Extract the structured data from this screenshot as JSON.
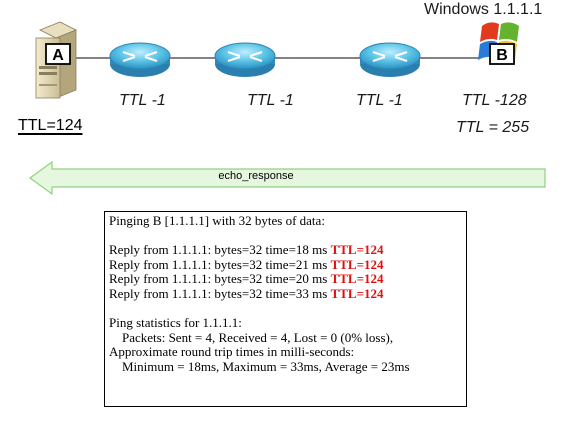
{
  "diagram": {
    "host_a": {
      "letter": "A",
      "ttl_label": "TTL=124"
    },
    "host_b": {
      "letter": "B",
      "title": "Windows 1.1.1.1",
      "hop_label": "TTL -128",
      "initial_ttl_label": "TTL = 255"
    },
    "routers": [
      {
        "hop_label": "TTL -1"
      },
      {
        "hop_label": "TTL -1"
      },
      {
        "hop_label": "TTL -1"
      }
    ],
    "arrow": {
      "label": "echo_response",
      "direction": "left"
    },
    "colors": {
      "router": "#59c2e6",
      "arrow_fill": "#e6f7df",
      "highlight": "#e01010"
    }
  },
  "console": {
    "header": "Pinging B [1.1.1.1] with 32 bytes of data:",
    "replies": [
      {
        "text": "Reply from 1.1.1.1: bytes=32 time=18 ms ",
        "ttl": "TTL=124"
      },
      {
        "text": "Reply from 1.1.1.1: bytes=32 time=21 ms ",
        "ttl": "TTL=124"
      },
      {
        "text": "Reply from 1.1.1.1: bytes=32 time=20 ms ",
        "ttl": "TTL=124"
      },
      {
        "text": "Reply from 1.1.1.1: bytes=32 time=33 ms ",
        "ttl": "TTL=124"
      }
    ],
    "stats_header": "Ping statistics for 1.1.1.1:",
    "packets": "    Packets: Sent = 4, Received = 4, Lost = 0 (0% loss),",
    "rtt_header": "Approximate round trip times in milli-seconds:",
    "rtt_values": "    Minimum = 18ms, Maximum = 33ms, Average = 23ms"
  }
}
